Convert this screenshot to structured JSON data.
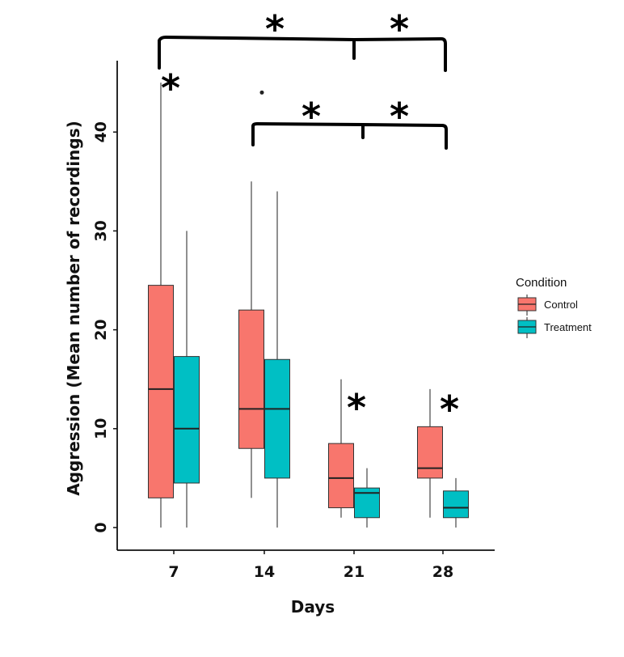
{
  "chart_data": {
    "type": "box",
    "xlabel": "Days",
    "ylabel": "Aggression (Mean number of recordings)",
    "ylim": [
      0,
      45
    ],
    "y_ticks": [
      "0",
      "10",
      "20",
      "30",
      "40"
    ],
    "y_tick_values": [
      0,
      10,
      20,
      30,
      40
    ],
    "categories": [
      "7",
      "14",
      "21",
      "28"
    ],
    "legend_title": "Condition",
    "legend_position": "right",
    "grid": false,
    "series": [
      {
        "name": "Control",
        "color": "#F8766D",
        "boxes": [
          {
            "min": 0,
            "q1": 3,
            "median": 14,
            "q3": 24.5,
            "max": 45,
            "outliers": []
          },
          {
            "min": 3,
            "q1": 8,
            "median": 12,
            "q3": 22,
            "max": 35,
            "outliers": [
              44
            ]
          },
          {
            "min": 1,
            "q1": 2,
            "median": 5,
            "q3": 8.5,
            "max": 15,
            "outliers": []
          },
          {
            "min": 1,
            "q1": 5,
            "median": 6,
            "q3": 10.2,
            "max": 14,
            "outliers": []
          }
        ]
      },
      {
        "name": "Treatment",
        "color": "#00BFC4",
        "boxes": [
          {
            "min": 0,
            "q1": 4.5,
            "median": 10,
            "q3": 17.3,
            "max": 30,
            "outliers": []
          },
          {
            "min": 0,
            "q1": 5,
            "median": 12,
            "q3": 17,
            "max": 34,
            "outliers": []
          },
          {
            "min": 0,
            "q1": 1,
            "median": 3.5,
            "q3": 4,
            "max": 6,
            "outliers": []
          },
          {
            "min": 0,
            "q1": 1,
            "median": 2,
            "q3": 3.7,
            "max": 5,
            "outliers": []
          }
        ]
      }
    ],
    "annotations": [
      {
        "text": "*",
        "category": "7"
      },
      {
        "text": "*",
        "category": "21"
      },
      {
        "text": "*",
        "category": "28"
      },
      {
        "text": "*",
        "between": [
          "7",
          "21"
        ]
      },
      {
        "text": "*",
        "between": [
          "21",
          "28"
        ]
      },
      {
        "text": "*",
        "between": [
          "14",
          "21"
        ]
      },
      {
        "text": "*",
        "between": [
          "21",
          "28"
        ]
      }
    ]
  }
}
